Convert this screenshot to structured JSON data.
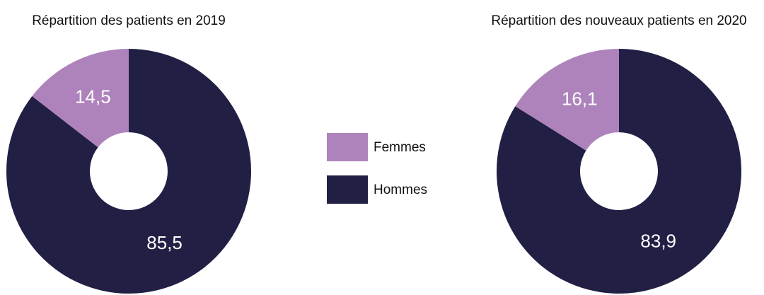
{
  "chart_data": [
    {
      "type": "donut",
      "title": "Répartition des patients en 2019",
      "categories": [
        "Femmes",
        "Hommes"
      ],
      "values": [
        14.5,
        85.5
      ],
      "value_labels": [
        "14,5",
        "85,5"
      ],
      "colors": [
        "#ae83bb",
        "#221f45"
      ]
    },
    {
      "type": "donut",
      "title": "Répartition des nouveaux patients en 2020",
      "categories": [
        "Femmes",
        "Hommes"
      ],
      "values": [
        16.1,
        83.9
      ],
      "value_labels": [
        "16,1",
        "83,9"
      ],
      "colors": [
        "#ae83bb",
        "#221f45"
      ]
    }
  ]
}
